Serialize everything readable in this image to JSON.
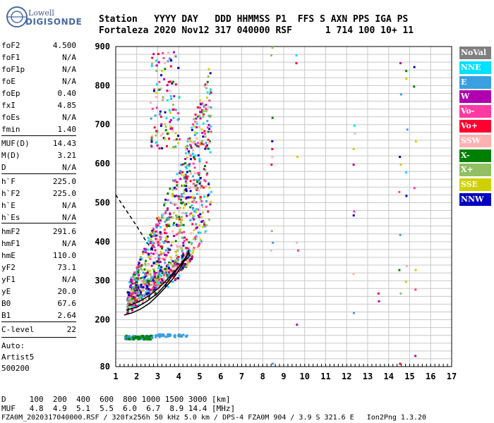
{
  "logo": {
    "line1": "Lowell",
    "line2": "DIGISONDE"
  },
  "header": {
    "labels": "Station   YYYY DAY   DDD HHMMSS P1  FFS S AXN PPS IGA PS",
    "values": "Fortaleza 2020 Nov12 317 040000 RSF      1 714 100 10+ 11"
  },
  "params": [
    {
      "k": "foF2",
      "v": "4.500"
    },
    {
      "k": "foF1",
      "v": "N/A"
    },
    {
      "k": "foF1p",
      "v": "N/A"
    },
    {
      "k": "foE",
      "v": "N/A"
    },
    {
      "k": "foEp",
      "v": "0.40"
    },
    {
      "k": "fxI",
      "v": "4.85"
    },
    {
      "k": "foEs",
      "v": "N/A"
    },
    {
      "k": "fmin",
      "v": "1.40"
    },
    {
      "k": "MUF(D)",
      "v": "14.43"
    },
    {
      "k": "M(D)",
      "v": "3.21"
    },
    {
      "k": "D",
      "v": "N/A"
    },
    {
      "k": "h`F",
      "v": "225.0"
    },
    {
      "k": "h`F2",
      "v": "225.0"
    },
    {
      "k": "h`E",
      "v": "N/A"
    },
    {
      "k": "h`Es",
      "v": "N/A"
    },
    {
      "k": "hmF2",
      "v": "291.6"
    },
    {
      "k": "hmF1",
      "v": "N/A"
    },
    {
      "k": "hmE",
      "v": "110.0"
    },
    {
      "k": "yF2",
      "v": "73.1"
    },
    {
      "k": "yF1",
      "v": "N/A"
    },
    {
      "k": "yE",
      "v": "20.0"
    },
    {
      "k": "B0",
      "v": "67.6"
    },
    {
      "k": "B1",
      "v": "2.64"
    },
    {
      "k": "C-level",
      "v": "22"
    }
  ],
  "auto": {
    "line1": "Auto:",
    "line2": "Artist5",
    "line3": "500200"
  },
  "legend": [
    {
      "label": "NoVal",
      "bg": "#808080",
      "fg": "#ffffff"
    },
    {
      "label": "NNE",
      "bg": "#00e0ff",
      "fg": "#ffffff"
    },
    {
      "label": "E",
      "bg": "#3aa0e0",
      "fg": "#ffffff"
    },
    {
      "label": "W",
      "bg": "#b000b0",
      "fg": "#ffffff"
    },
    {
      "label": "Vo-",
      "bg": "#ff3aa0",
      "fg": "#ffffff"
    },
    {
      "label": "Vo+",
      "bg": "#ff0030",
      "fg": "#ffffff"
    },
    {
      "label": "SSW",
      "bg": "#ffb0b0",
      "fg": "#ffffff"
    },
    {
      "label": "X-",
      "bg": "#008000",
      "fg": "#ffffff"
    },
    {
      "label": "X+",
      "bg": "#90c060",
      "fg": "#ffffff"
    },
    {
      "label": "SSE",
      "bg": "#d0d000",
      "fg": "#ffffff"
    },
    {
      "label": "NNW",
      "bg": "#0000c0",
      "fg": "#ffffff"
    }
  ],
  "footer": {
    "line1": "D     100  200  400  600  800 1000 1500 3000 [km]",
    "line2": "MUF   4.8  4.9  5.1  5.5  6.0  6.7  8.9 14.4 [MHz]",
    "line3": "FZA0M_2020317040000.RSF / 320fx256h 50 kHz 5.0 km / DPS-4 FZA0M 904 / 3.9 S 321.6 E   Ion2Png 1.3.20"
  },
  "chart_data": {
    "type": "scatter",
    "title": "",
    "xlabel": "",
    "ylabel": "",
    "xlim": [
      1,
      17
    ],
    "ylim": [
      80,
      900
    ],
    "x_ticks": [
      "1",
      "2",
      "3",
      "4",
      "5",
      "6",
      "7",
      "8",
      "9",
      "10",
      "11",
      "12",
      "13",
      "14",
      "15",
      "16",
      "17"
    ],
    "y_ticks": [
      "80",
      "200",
      "300",
      "400",
      "500",
      "600",
      "700",
      "800",
      "900"
    ],
    "grid": true,
    "legend_position": "right",
    "traces": [
      {
        "name": "profile",
        "color": "#000000",
        "points": [
          [
            1.4,
            212
          ],
          [
            1.8,
            218
          ],
          [
            2.2,
            228
          ],
          [
            2.6,
            242
          ],
          [
            3.0,
            262
          ],
          [
            3.4,
            285
          ],
          [
            3.8,
            310
          ],
          [
            4.1,
            335
          ],
          [
            4.35,
            360
          ],
          [
            4.5,
            380
          ]
        ]
      },
      {
        "name": "trace_o",
        "color": "#000000",
        "points": [
          [
            1.5,
            225
          ],
          [
            2.0,
            232
          ],
          [
            2.5,
            248
          ],
          [
            3.0,
            268
          ],
          [
            3.4,
            292
          ],
          [
            3.8,
            320
          ],
          [
            4.2,
            350
          ],
          [
            4.5,
            372
          ]
        ]
      },
      {
        "name": "trace_x",
        "color": "#000000",
        "points": [
          [
            1.6,
            236
          ],
          [
            2.1,
            246
          ],
          [
            2.6,
            262
          ],
          [
            3.1,
            284
          ],
          [
            3.5,
            306
          ],
          [
            3.9,
            330
          ],
          [
            4.3,
            352
          ],
          [
            4.5,
            362
          ]
        ]
      },
      {
        "name": "dashed",
        "color": "#000000",
        "dashed": true,
        "points": [
          [
            1.0,
            520
          ],
          [
            1.5,
            480
          ],
          [
            2.0,
            440
          ],
          [
            2.4,
            405
          ],
          [
            2.8,
            375
          ]
        ]
      }
    ]
  }
}
